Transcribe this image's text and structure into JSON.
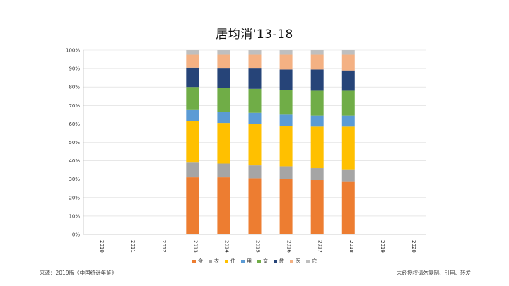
{
  "chart_data": {
    "type": "bar",
    "stacked": true,
    "title": "居均消'13-18",
    "categories": [
      "2010",
      "2011",
      "2012",
      "2013",
      "2014",
      "2015",
      "2016",
      "2017",
      "2018",
      "2019",
      "2020"
    ],
    "y_ticks": [
      "0%",
      "10%",
      "20%",
      "30%",
      "40%",
      "50%",
      "60%",
      "70%",
      "80%",
      "90%",
      "100%"
    ],
    "ylim": [
      0,
      100
    ],
    "grid": true,
    "legend_position": "bottom",
    "series": [
      {
        "name": "食",
        "color": "#ED7D31",
        "values": [
          null,
          null,
          null,
          31,
          31,
          30.5,
          30,
          29.5,
          28.5,
          null,
          null
        ]
      },
      {
        "name": "衣",
        "color": "#A5A5A5",
        "values": [
          null,
          null,
          null,
          8,
          7.5,
          7,
          7,
          6.5,
          6.5,
          null,
          null
        ]
      },
      {
        "name": "住",
        "color": "#FFC000",
        "values": [
          null,
          null,
          null,
          22.5,
          22,
          22.5,
          22,
          22.5,
          23.5,
          null,
          null
        ]
      },
      {
        "name": "用",
        "color": "#5B9BD5",
        "values": [
          null,
          null,
          null,
          6,
          6,
          6,
          6,
          6,
          6,
          null,
          null
        ]
      },
      {
        "name": "交",
        "color": "#70AD47",
        "values": [
          null,
          null,
          null,
          12.5,
          13,
          13,
          13.5,
          13.5,
          13.5,
          null,
          null
        ]
      },
      {
        "name": "教",
        "color": "#264478",
        "values": [
          null,
          null,
          null,
          10.5,
          10.5,
          11,
          11,
          11.5,
          11,
          null,
          null
        ]
      },
      {
        "name": "医",
        "color": "#F4B183",
        "values": [
          null,
          null,
          null,
          7,
          7.5,
          7.5,
          8,
          8,
          8.5,
          null,
          null
        ]
      },
      {
        "name": "它",
        "color": "#BFBFBF",
        "values": [
          null,
          null,
          null,
          2.5,
          2.5,
          2.5,
          2.5,
          2.5,
          2.5,
          null,
          null
        ]
      }
    ]
  },
  "footer": {
    "source": "来源：2019版《中国统计年鉴》",
    "copyright": "未经授权请勿复制、引用、转发"
  }
}
